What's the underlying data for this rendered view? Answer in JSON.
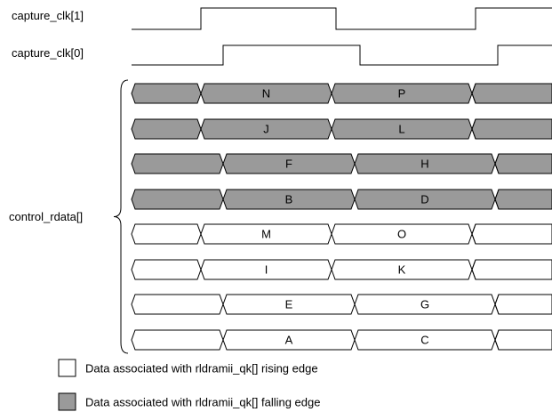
{
  "colors": {
    "falling": "#9a9a9a",
    "rising": "#ffffff",
    "stroke": "#000000"
  },
  "clocks": [
    {
      "label": "capture_clk[1]",
      "levels": [
        0,
        1,
        0,
        1
      ]
    },
    {
      "label": "capture_clk[0]",
      "levels": [
        0,
        1,
        0,
        1
      ]
    }
  ],
  "bus_label": "control_rdata[]",
  "rows": [
    {
      "type": "falling",
      "lane": "early",
      "cells": [
        "",
        "N",
        "P",
        ""
      ]
    },
    {
      "type": "falling",
      "lane": "early",
      "cells": [
        "",
        "J",
        "L",
        ""
      ]
    },
    {
      "type": "falling",
      "lane": "late",
      "cells": [
        "",
        "F",
        "H",
        ""
      ]
    },
    {
      "type": "falling",
      "lane": "late",
      "cells": [
        "",
        "B",
        "D",
        ""
      ]
    },
    {
      "type": "rising",
      "lane": "early",
      "cells": [
        "",
        "M",
        "O",
        ""
      ]
    },
    {
      "type": "rising",
      "lane": "early",
      "cells": [
        "",
        "I",
        "K",
        ""
      ]
    },
    {
      "type": "rising",
      "lane": "late",
      "cells": [
        "",
        "E",
        "G",
        ""
      ]
    },
    {
      "type": "rising",
      "lane": "late",
      "cells": [
        "",
        "A",
        "C",
        ""
      ]
    }
  ],
  "legend": [
    {
      "type": "rising",
      "text": "Data associated with rldramii_qk[] rising edge"
    },
    {
      "type": "falling",
      "text": "Data associated with rldramii_qk[] falling edge"
    }
  ]
}
